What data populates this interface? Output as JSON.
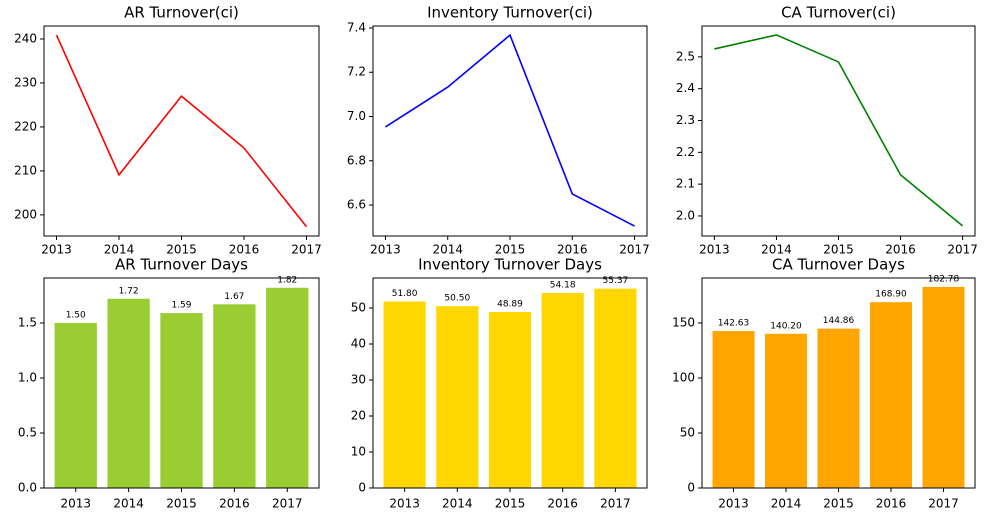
{
  "chart_data": [
    {
      "type": "line",
      "title": "AR Turnover(ci)",
      "x": [
        2013,
        2014,
        2015,
        2016,
        2017
      ],
      "values": [
        240.9,
        209.1,
        227.0,
        215.2,
        197.3
      ],
      "color": "#ff0000",
      "xlim": [
        2012.8,
        2017.2
      ],
      "xticks": [
        2013,
        2014,
        2015,
        2016,
        2017
      ],
      "ylim": [
        195.2,
        242.95
      ],
      "yticks": [
        200,
        210,
        220,
        230,
        240
      ]
    },
    {
      "type": "line",
      "title": "Inventory Turnover(ci)",
      "x": [
        2013,
        2014,
        2015,
        2016,
        2017
      ],
      "values": [
        6.953,
        7.133,
        7.368,
        6.65,
        6.505
      ],
      "color": "#0000ff",
      "xlim": [
        2012.8,
        2017.2
      ],
      "xticks": [
        2013,
        2014,
        2015,
        2016,
        2017
      ],
      "ylim": [
        6.46,
        7.409
      ],
      "yticks": [
        6.6,
        6.8,
        {
          "value": 7,
          "label": "7.0"
        },
        7.2,
        7.4
      ]
    },
    {
      "type": "line",
      "title": "CA Turnover(ci)",
      "x": [
        2013,
        2014,
        2015,
        2016,
        2017
      ],
      "values": [
        2.525,
        2.569,
        2.484,
        2.129,
        1.969
      ],
      "color": "#008000",
      "xlim": [
        2012.8,
        2017.2
      ],
      "xticks": [
        2013,
        2014,
        2015,
        2016,
        2017
      ],
      "ylim": [
        1.937,
        2.597
      ],
      "yticks": [
        {
          "value": 2,
          "label": "2.0"
        },
        2.1,
        2.2,
        2.3,
        2.4,
        2.5
      ]
    },
    {
      "type": "bar",
      "title": "AR Turnover Days",
      "categories": [
        "2013",
        "2014",
        "2015",
        "2016",
        "2017"
      ],
      "values": [
        1.5,
        1.72,
        1.59,
        1.67,
        1.82
      ],
      "value_labels": [
        "1.50",
        "1.72",
        "1.59",
        "1.67",
        "1.82"
      ],
      "color": "#9acd32",
      "ylim": [
        0,
        1.909
      ],
      "yticks": [
        {
          "value": 0,
          "label": "0.0"
        },
        0.5,
        {
          "value": 1,
          "label": "1.0"
        },
        1.5
      ]
    },
    {
      "type": "bar",
      "title": "Inventory Turnover Days",
      "categories": [
        "2013",
        "2014",
        "2015",
        "2016",
        "2017"
      ],
      "values": [
        51.8,
        50.5,
        48.89,
        54.18,
        55.37
      ],
      "value_labels": [
        "51.80",
        "50.50",
        "48.89",
        "54.18",
        "55.37"
      ],
      "color": "#ffd700",
      "ylim": [
        0,
        58.33
      ],
      "yticks": [
        0,
        10,
        20,
        30,
        40,
        50
      ]
    },
    {
      "type": "bar",
      "title": "CA Turnover Days",
      "categories": [
        "2013",
        "2014",
        "2015",
        "2016",
        "2017"
      ],
      "values": [
        142.63,
        140.2,
        144.86,
        168.9,
        182.78
      ],
      "value_labels": [
        "142.63",
        "140.20",
        "144.86",
        "168.90",
        "182.78"
      ],
      "color": "#ffa500",
      "ylim": [
        0,
        190.9
      ],
      "yticks": [
        0,
        50,
        100,
        150
      ]
    }
  ]
}
